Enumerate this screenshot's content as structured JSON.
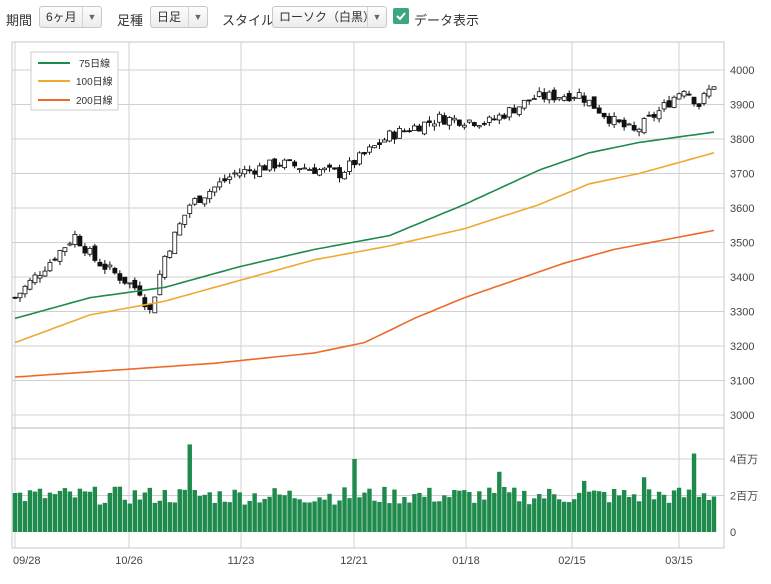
{
  "toolbar": {
    "period_label": "期間",
    "period_value": "6ヶ月",
    "interval_label": "足種",
    "interval_value": "日足",
    "style_label": "スタイル",
    "style_value": "ローソク（白黒）",
    "data_display_label": "データ表示",
    "data_display_checked": true
  },
  "colors": {
    "ma75": "#1e8a4c",
    "ma100": "#f0a830",
    "ma200": "#ec6b2a",
    "volume": "#1e8a4c",
    "grid": "#d0d0d0",
    "checkbox": "#3aa77d"
  },
  "chart_data": [
    {
      "type": "line",
      "subtype": "candlestick-with-moving-averages",
      "x_tick_labels": [
        "09/28",
        "10/26",
        "11/23",
        "12/21",
        "01/18",
        "02/15",
        "03/15"
      ],
      "y_ticks": [
        4000,
        3900,
        3800,
        3700,
        3600,
        3500,
        3400,
        3300,
        3200,
        3100,
        3000
      ],
      "ylim": [
        3000,
        4000
      ],
      "legend": [
        "75日線",
        "100日線",
        "200日線"
      ],
      "legend_position": "top-left",
      "grid": true,
      "close_profile_days": [
        0,
        12,
        16,
        25,
        27,
        30,
        35,
        44,
        53,
        65,
        75,
        85,
        95,
        104,
        113,
        120,
        124,
        129,
        134,
        137,
        140
      ],
      "close_profile_values": [
        3340,
        3520,
        3450,
        3360,
        3300,
        3460,
        3610,
        3700,
        3730,
        3700,
        3810,
        3860,
        3850,
        3920,
        3930,
        3850,
        3820,
        3880,
        3950,
        3900,
        3960
      ],
      "ma75_days": [
        0,
        15,
        30,
        45,
        60,
        75,
        90,
        105,
        115,
        125,
        140
      ],
      "ma75_values": [
        3280,
        3340,
        3370,
        3430,
        3480,
        3520,
        3610,
        3710,
        3760,
        3790,
        3820
      ],
      "ma100_days": [
        0,
        15,
        30,
        45,
        60,
        75,
        90,
        105,
        115,
        125,
        140
      ],
      "ma100_values": [
        3210,
        3290,
        3330,
        3390,
        3450,
        3490,
        3540,
        3610,
        3670,
        3700,
        3760
      ],
      "ma200_days": [
        0,
        20,
        40,
        60,
        70,
        80,
        90,
        100,
        110,
        120,
        140
      ],
      "ma200_values": [
        3110,
        3130,
        3150,
        3180,
        3210,
        3280,
        3340,
        3390,
        3440,
        3480,
        3535
      ]
    },
    {
      "type": "bar",
      "subtype": "volume",
      "y_tick_labels": [
        "4百万",
        "2百万",
        "0"
      ],
      "ylim_millions": [
        0,
        4.0
      ],
      "typical_millions": 2.0,
      "spike_days": [
        {
          "day": 35,
          "millions": 4.8
        },
        {
          "day": 68,
          "millions": 4.0
        },
        {
          "day": 97,
          "millions": 3.3
        },
        {
          "day": 136,
          "millions": 4.3
        },
        {
          "day": 126,
          "millions": 3.0
        },
        {
          "day": 114,
          "millions": 2.8
        }
      ]
    }
  ]
}
